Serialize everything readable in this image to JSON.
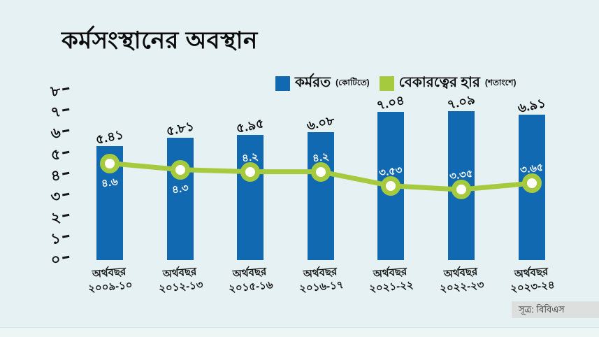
{
  "title": "কর্মসংস্থানের অবস্থান",
  "legend": {
    "employed_label": "কর্মরত",
    "employed_unit": "(কোটিতে)",
    "unemployment_label": "বেকারত্বের হার",
    "unemployment_unit": "(শতাংশে)"
  },
  "source": "সূত্র: বিবিএস",
  "colors": {
    "background": "#e5f1f2",
    "bar_blue": "#1169b1",
    "line_green": "#a6ca3d",
    "source_bg": "#dcdfde"
  },
  "chart_data": {
    "type": "bar+line",
    "title": "কর্মসংস্থানের অবস্থান",
    "grid": false,
    "legend_position": "top-right",
    "ylim": [
      0,
      8
    ],
    "y_ticks": [
      {
        "label": "৮",
        "value": 8
      },
      {
        "label": "৭",
        "value": 7
      },
      {
        "label": "৬",
        "value": 6
      },
      {
        "label": "৫",
        "value": 5
      },
      {
        "label": "৪",
        "value": 4
      },
      {
        "label": "৩",
        "value": 3
      },
      {
        "label": "২",
        "value": 2
      },
      {
        "label": "১",
        "value": 1
      },
      {
        "label": "০",
        "value": 0
      }
    ],
    "categories": [
      {
        "line1": "অর্থবছর",
        "line2": "২০০৯-১০"
      },
      {
        "line1": "অর্থবছর",
        "line2": "২০১২-১৩"
      },
      {
        "line1": "অর্থবছর",
        "line2": "২০১৫-১৬"
      },
      {
        "line1": "অর্থবছর",
        "line2": "২০১৬-১৭"
      },
      {
        "line1": "অর্থবছর",
        "line2": "২০২১-২২"
      },
      {
        "line1": "অর্থবছর",
        "line2": "২০২২-২৩"
      },
      {
        "line1": "অর্থবছর",
        "line2": "২০২৩-২৪"
      }
    ],
    "series": [
      {
        "name": "কর্মরত",
        "unit": "কোটিতে",
        "type": "bar",
        "color": "#1169b1",
        "values": [
          5.41,
          5.81,
          5.95,
          6.08,
          7.04,
          7.09,
          6.91
        ],
        "labels": [
          "৫.৪১",
          "৫.৮১",
          "৫.৯৫",
          "৬.০৮",
          "৭.০৪",
          "৭.০৯",
          "৬.৯১"
        ]
      },
      {
        "name": "বেকারত্বের হার",
        "unit": "শতাংশে",
        "type": "line",
        "color": "#a6ca3d",
        "values": [
          4.6,
          4.3,
          4.2,
          4.2,
          3.53,
          3.35,
          3.65
        ],
        "labels": [
          "৪.৬",
          "৪.৩",
          "৪.২",
          "৪.২",
          "৩.৫৩",
          "৩.৩৫",
          "৩.৬৫"
        ],
        "label_positions": [
          "below",
          "below",
          "above",
          "above",
          "above",
          "above",
          "above"
        ]
      }
    ],
    "source": "সূত্র: বিবিএস"
  }
}
